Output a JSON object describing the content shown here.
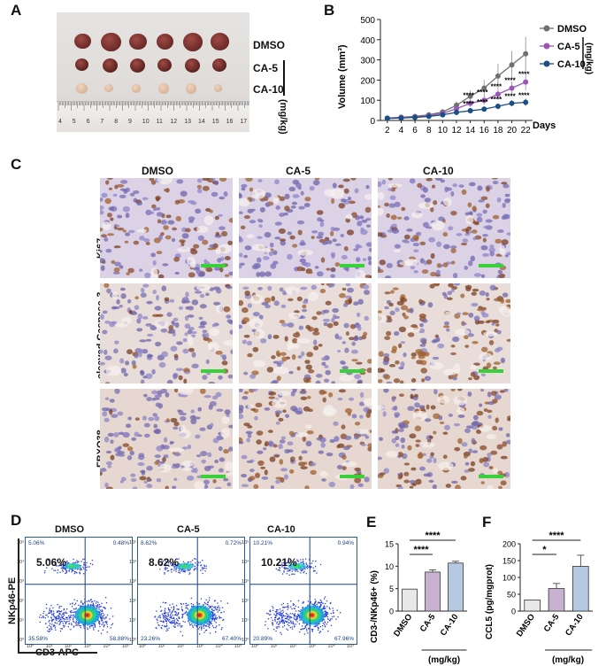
{
  "panel_labels": {
    "a": "A",
    "b": "B",
    "c": "C",
    "d": "D",
    "e": "E",
    "f": "F"
  },
  "panel_a": {
    "rows": [
      "DMSO",
      "CA-5",
      "CA-10"
    ],
    "unit": "(mg/kg)",
    "ruler_numbers": [
      "4",
      "5",
      "6",
      "7",
      "8",
      "9",
      "10",
      "11",
      "12",
      "13",
      "14",
      "15",
      "16",
      "17"
    ]
  },
  "chart_data": [
    {
      "type": "line",
      "panel": "B",
      "ylabel": "Volume (mm³)",
      "xlabel": "Days",
      "x": [
        2,
        4,
        6,
        8,
        10,
        12,
        14,
        16,
        18,
        20,
        22
      ],
      "ylim": [
        0,
        500
      ],
      "yticks": [
        0,
        100,
        200,
        300,
        400,
        500
      ],
      "legend_position": "right",
      "legend_unit": "(mg/kg)",
      "significance": "****",
      "series": [
        {
          "name": "DMSO",
          "color": "#707070",
          "values": [
            12,
            16,
            20,
            28,
            42,
            75,
            120,
            160,
            220,
            275,
            330
          ],
          "errors": [
            3,
            4,
            5,
            8,
            12,
            20,
            30,
            40,
            60,
            70,
            85
          ]
        },
        {
          "name": "CA-5",
          "color": "#9a55b5",
          "values": [
            11,
            14,
            17,
            24,
            35,
            58,
            85,
            100,
            130,
            160,
            190
          ],
          "errors": [
            3,
            4,
            4,
            6,
            9,
            14,
            18,
            22,
            28,
            33,
            40
          ]
        },
        {
          "name": "CA-10",
          "color": "#1a4f85",
          "values": [
            10,
            12,
            15,
            20,
            28,
            40,
            48,
            56,
            70,
            85,
            90
          ],
          "errors": [
            2,
            3,
            3,
            4,
            6,
            8,
            10,
            12,
            14,
            16,
            18
          ]
        }
      ]
    },
    {
      "type": "bar",
      "panel": "E",
      "ylabel": "CD3-/NKp46+ (%)",
      "categories": [
        "DMSO",
        "CA-5",
        "CA-10"
      ],
      "values": [
        4.9,
        8.7,
        10.7
      ],
      "errors": [
        0,
        0.5,
        0.4
      ],
      "colors": [
        "#e8e8e8",
        "#c9b2d1",
        "#b5c9e3"
      ],
      "ylim": [
        0,
        15
      ],
      "yticks": [
        0,
        5,
        10,
        15
      ],
      "group_unit": "(mg/kg)",
      "significance": [
        {
          "from": 0,
          "to": 1,
          "label": "****"
        },
        {
          "from": 0,
          "to": 2,
          "label": "****"
        }
      ]
    },
    {
      "type": "bar",
      "panel": "F",
      "ylabel": "CCL5 (pg/mgprot)",
      "categories": [
        "DMSO",
        "CA-5",
        "CA-10"
      ],
      "values": [
        33,
        67,
        133
      ],
      "errors": [
        0,
        15,
        33
      ],
      "colors": [
        "#e8e8e8",
        "#c9b2d1",
        "#b5c9e3"
      ],
      "ylim": [
        0,
        200
      ],
      "yticks": [
        0,
        50,
        100,
        150,
        200
      ],
      "group_unit": "(mg/kg)",
      "significance": [
        {
          "from": 0,
          "to": 1,
          "label": "*"
        },
        {
          "from": 0,
          "to": 2,
          "label": "****"
        }
      ]
    }
  ],
  "panel_c": {
    "columns": [
      "DMSO",
      "CA-5",
      "CA-10"
    ],
    "rows": [
      "Ki67",
      "cleaved Caspase-3",
      "FBXO38"
    ]
  },
  "panel_d": {
    "titles": [
      "DMSO",
      "CA-5",
      "CA-10"
    ],
    "big_values": [
      "5.06%",
      "8.62%",
      "10.21%"
    ],
    "quadrants": [
      {
        "ul": "5.06%",
        "ur": "0.48%",
        "ll": "35.58%",
        "lr": "58.88%"
      },
      {
        "ul": "8.62%",
        "ur": "0.72%",
        "ll": "23.26%",
        "lr": "67.40%"
      },
      {
        "ul": "10.21%",
        "ur": "0.94%",
        "ll": "20.89%",
        "lr": "67.96%"
      }
    ],
    "xlabel": "CD3-APC",
    "ylabel": "NKp46-PE",
    "axis_ticks": [
      "10⁰",
      "10¹",
      "10²",
      "10³",
      "10⁴",
      "10⁵"
    ]
  }
}
